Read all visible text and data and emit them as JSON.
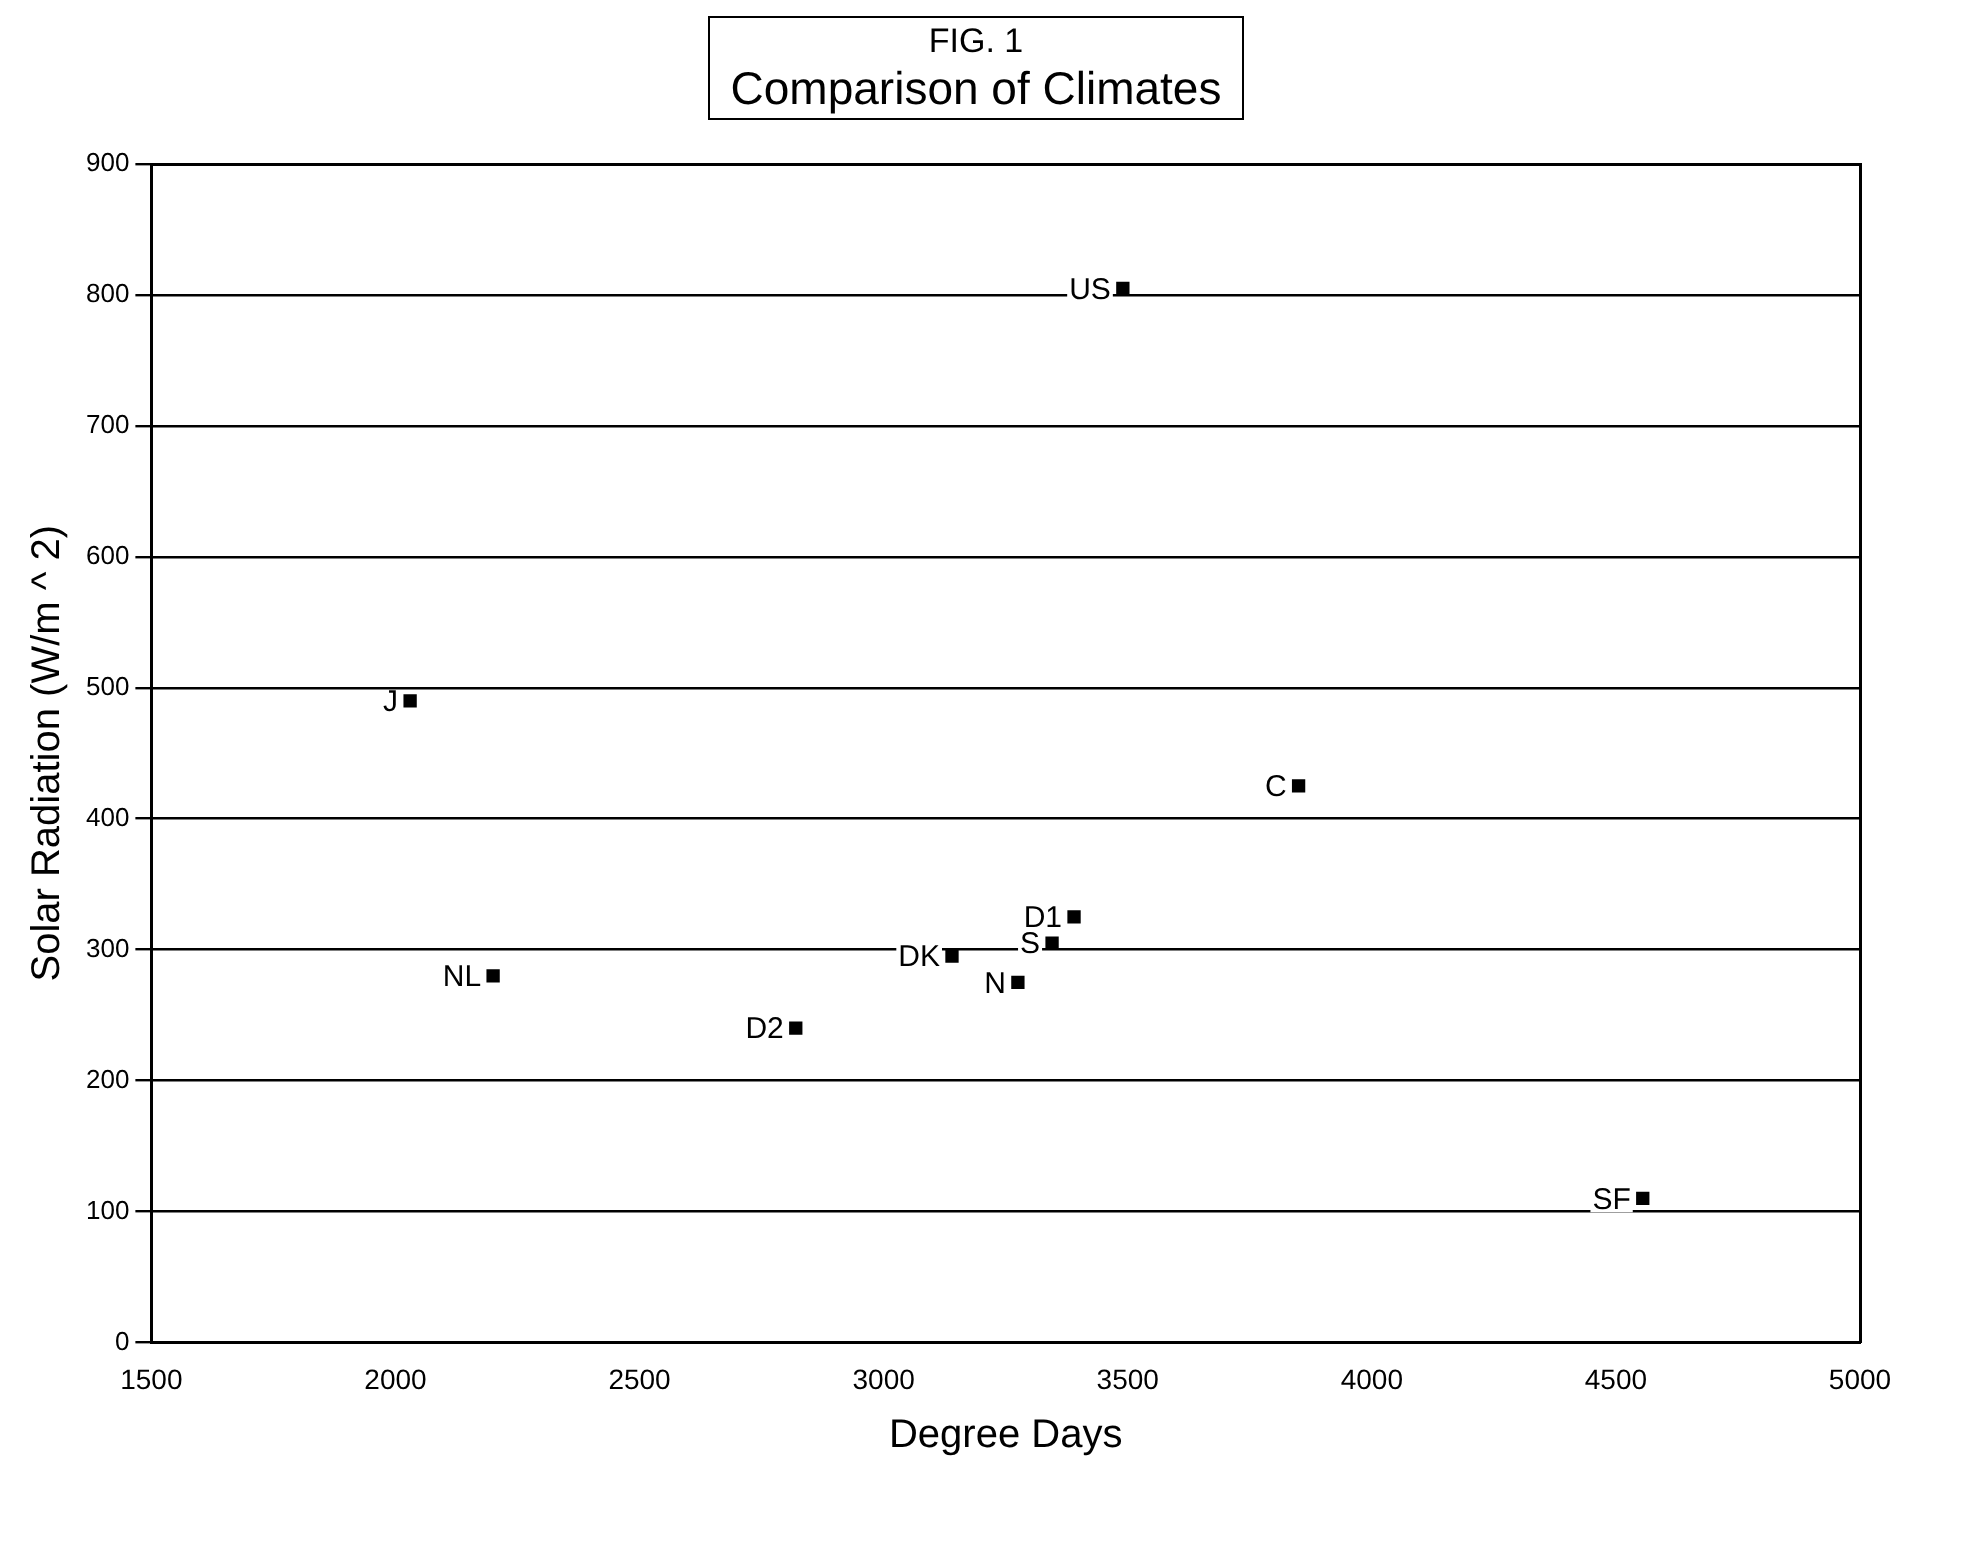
{
  "chart_data": {
    "type": "scatter",
    "title": "FIG. 1",
    "subtitle": "Comparison of Climates",
    "xlabel": "Degree Days",
    "ylabel": "Solar Radiation (W/m ^ 2)",
    "x": [
      3490,
      2030,
      2200,
      2820,
      3140,
      3345,
      3390,
      3275,
      3850,
      4555
    ],
    "series": [
      {
        "color": "#000000",
        "values": [
          805,
          490,
          280,
          240,
          295,
          305,
          325,
          275,
          425,
          110
        ]
      }
    ],
    "annotations": [
      {
        "text": "US",
        "x": 3490,
        "y": 805
      },
      {
        "text": "J",
        "x": 2030,
        "y": 490
      },
      {
        "text": "NL",
        "x": 2200,
        "y": 280
      },
      {
        "text": "D2",
        "x": 2820,
        "y": 240
      },
      {
        "text": "DK",
        "x": 3140,
        "y": 295
      },
      {
        "text": "S",
        "x": 3345,
        "y": 305
      },
      {
        "text": "D1",
        "x": 3390,
        "y": 325
      },
      {
        "text": "N",
        "x": 3275,
        "y": 275
      },
      {
        "text": "C",
        "x": 3850,
        "y": 425
      },
      {
        "text": "SF",
        "x": 4555,
        "y": 110
      }
    ],
    "xlim": [
      1500,
      5000
    ],
    "xticks": [
      1500,
      2000,
      2500,
      3000,
      3500,
      4000,
      4500,
      5000
    ],
    "ylim": [
      0,
      900
    ],
    "yticks": [
      0,
      100,
      200,
      300,
      400,
      500,
      600,
      700,
      800,
      900
    ],
    "grid": "y",
    "marker": "square",
    "legend": false
  }
}
